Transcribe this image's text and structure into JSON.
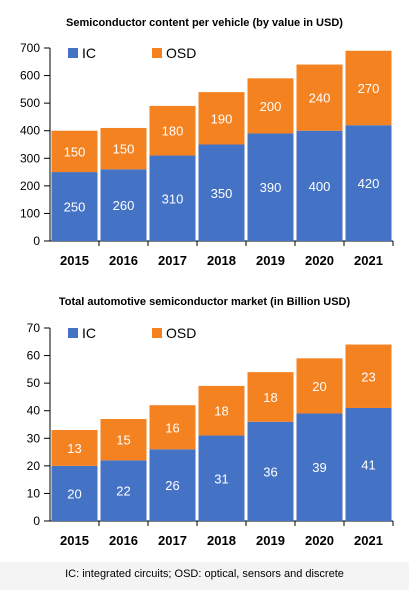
{
  "colors": {
    "ic": "#4472c4",
    "osd": "#f58220",
    "axis": "#000000"
  },
  "footnote": "IC: integrated circuits; OSD: optical, sensors and discrete",
  "chart_data": [
    {
      "type": "bar",
      "stacked": true,
      "title": "Semiconductor content per vehicle (by value in USD)",
      "categories": [
        "2015",
        "2016",
        "2017",
        "2018",
        "2019",
        "2020",
        "2021"
      ],
      "series": [
        {
          "name": "IC",
          "values": [
            250,
            260,
            310,
            350,
            390,
            400,
            420
          ]
        },
        {
          "name": "OSD",
          "values": [
            150,
            150,
            180,
            190,
            200,
            240,
            270
          ]
        }
      ],
      "ylim": [
        0,
        700
      ],
      "yticks": [
        0,
        100,
        200,
        300,
        400,
        500,
        600,
        700
      ],
      "legend": "top-left",
      "grid": false
    },
    {
      "type": "bar",
      "stacked": true,
      "title": "Total automotive semiconductor market (in Billion USD)",
      "categories": [
        "2015",
        "2016",
        "2017",
        "2018",
        "2019",
        "2020",
        "2021"
      ],
      "series": [
        {
          "name": "IC",
          "values": [
            20,
            22,
            26,
            31,
            36,
            39,
            41
          ]
        },
        {
          "name": "OSD",
          "values": [
            13,
            15,
            16,
            18,
            18,
            20,
            23
          ]
        }
      ],
      "ylim": [
        0,
        70
      ],
      "yticks": [
        0,
        10,
        20,
        30,
        40,
        50,
        60,
        70
      ],
      "legend": "top-left",
      "grid": false
    }
  ]
}
